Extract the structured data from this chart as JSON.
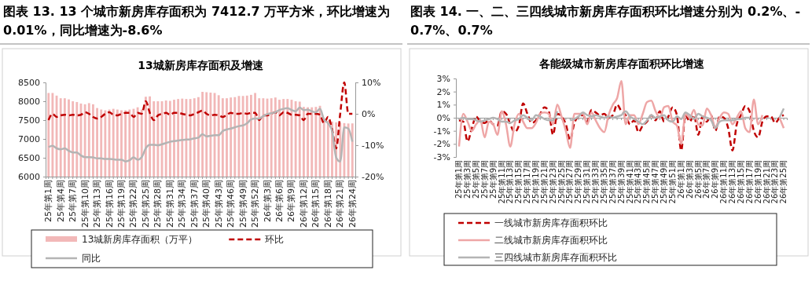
{
  "chart_data": [
    {
      "type": "bar",
      "title": "图表 13. 13 个城市新房库存面积为 7412.7 万平方米，环比增速为 0.01%，同比增速为-8.6%",
      "subtitle": "13城新房库存面积及增速",
      "categories": [
        "25年第1周",
        null,
        null,
        "25年第4周",
        null,
        null,
        "25年第7周",
        null,
        null,
        "25年第10周",
        null,
        null,
        "25年第13周",
        null,
        null,
        "25年第16周",
        null,
        null,
        "25年第19周",
        null,
        null,
        "25年第22周",
        null,
        null,
        "25年第25周",
        null,
        null,
        "25年第28周",
        null,
        null,
        "25年第31周",
        null,
        null,
        "25年第34周",
        null,
        null,
        "25年第37周",
        null,
        null,
        "25年第40周",
        null,
        null,
        "25年第43周",
        null,
        null,
        "25年第46周",
        null,
        null,
        "25年第49周",
        null,
        null,
        "25年第52周",
        null,
        null,
        "26年第3周",
        null,
        null,
        "26年第6周",
        null,
        null,
        "26年第9周",
        null,
        null,
        "26年第12周",
        null,
        null,
        "26年第15周",
        null,
        null,
        "26年第18周",
        null,
        null,
        "26年第21周",
        null,
        null,
        "26年第24周"
      ],
      "ylim": [
        6000,
        8500
      ],
      "yticks": [
        6000,
        6500,
        7000,
        7500,
        8000,
        8500
      ],
      "y2lim": [
        -20,
        10
      ],
      "y2ticks": [
        {
          "value": -20,
          "label": "-20%"
        },
        {
          "value": -10,
          "label": "-10%"
        },
        {
          "value": 0,
          "label": "0%"
        },
        {
          "value": 10,
          "label": "10%"
        }
      ],
      "legend": "bottom",
      "series": [
        {
          "name": "13城新房库存面积（万平）",
          "color": "#f2b8b8",
          "values": [
            8220,
            8220,
            8150,
            8080,
            8080,
            8050,
            8000,
            7980,
            7940,
            7920,
            7950,
            7920,
            7820,
            7780,
            7760,
            7780,
            7800,
            7780,
            7760,
            7760,
            7780,
            7800,
            7840,
            7780,
            8120,
            8130,
            8000,
            8000,
            8000,
            8020,
            8010,
            8040,
            8060,
            8070,
            8060,
            8060,
            8080,
            8110,
            8250,
            8240,
            8230,
            8220,
            8160,
            8080,
            8080,
            8100,
            8110,
            8140,
            8140,
            8150,
            8170,
            8220,
            8080,
            8080,
            8070,
            8080,
            8100,
            8040,
            8060,
            8060,
            8040,
            8000,
            7990,
            7850,
            7840,
            7840,
            7850,
            7880,
            7530,
            7480,
            7460,
            7440,
            7430,
            7420,
            7410,
            7412.7
          ]
        },
        {
          "name": "环比",
          "type": "line",
          "axis": "y2",
          "line_style": "dashed",
          "color": "#c00000",
          "values": [
            -2,
            0,
            -1,
            -0.5,
            -0.3,
            -0.5,
            -0.3,
            -0.5,
            -0.3,
            0.5,
            0,
            -1,
            -1.5,
            -1,
            0,
            0.5,
            -0.3,
            -0.5,
            0,
            0.3,
            0.3,
            -1,
            0.3,
            0,
            4,
            0.3,
            -2,
            -0.5,
            0,
            0.3,
            -0.3,
            0.3,
            0.3,
            0,
            -0.3,
            -0.5,
            0,
            0.5,
            1,
            0,
            -0.5,
            -0.3,
            -0.5,
            -1,
            -0.3,
            0.3,
            0,
            0,
            0.3,
            0,
            0.3,
            0.3,
            -2,
            -0.5,
            -0.5,
            0,
            0.5,
            -0.5,
            0.5,
            0.3,
            -0.3,
            -0.3,
            -0.5,
            -2,
            0,
            0,
            0,
            -0.3,
            -3,
            -1,
            -5,
            -11,
            0,
            10,
            0,
            0
          ]
        },
        {
          "name": "同比",
          "type": "line",
          "axis": "y2",
          "line_style": "solid",
          "color": "#b4b4b4",
          "values": [
            -10.6,
            -10.2,
            -11,
            -11.3,
            -11,
            -11.8,
            -12.3,
            -12.3,
            -13.3,
            -13.8,
            -13.8,
            -13.9,
            -14.2,
            -14.2,
            -14.4,
            -14.4,
            -14.5,
            -14.6,
            -14.6,
            -15.2,
            -14.8,
            -13.9,
            -14.6,
            -13.8,
            -11,
            -9.9,
            -9.9,
            -10,
            -9.7,
            -9.3,
            -8.9,
            -8.7,
            -8.5,
            -8.3,
            -8.2,
            -8.1,
            -7.8,
            -7.6,
            -6.5,
            -7.2,
            -7,
            -6.8,
            -6.8,
            -5.5,
            -5,
            -4.7,
            -4.3,
            -3.9,
            -3.7,
            -3,
            -1.8,
            -1.5,
            -1.5,
            -0.7,
            -0.1,
            0.2,
            0.5,
            1.2,
            1.6,
            1.8,
            1.2,
            0.8,
            2,
            1.2,
            1.3,
            0.8,
            0.5,
            1.6,
            -1.8,
            -3,
            -5.5,
            -13.9,
            -15.2,
            -4.3,
            -4.7,
            -8.9
          ]
        }
      ]
    },
    {
      "type": "line",
      "title": "图表 14. 一、二、三四线城市新房库存面积环比增速分别为 0.2%、-0.7%、0.7%",
      "subtitle": "各能级城市新房库存面积环比增速",
      "categories": [
        "25年第1周",
        null,
        "25年第3周",
        null,
        "25年第5周",
        null,
        "25年第7周",
        null,
        "25年第9周",
        null,
        "25年第11周",
        null,
        "25年第13周",
        null,
        "25年第15周",
        null,
        "25年第17周",
        null,
        "25年第19周",
        null,
        "25年第21周",
        null,
        "25年第23周",
        null,
        "25年第25周",
        null,
        "25年第27周",
        null,
        "25年第29周",
        null,
        "25年第31周",
        null,
        "25年第33周",
        null,
        "25年第35周",
        null,
        "25年第37周",
        null,
        "25年第39周",
        null,
        "25年第41周",
        null,
        "25年第43周",
        null,
        "25年第45周",
        null,
        "25年第47周",
        null,
        "25年第49周",
        null,
        "25年第51周",
        null,
        "26年第1周",
        null,
        "26年第3周",
        null,
        "26年第5周",
        null,
        "26年第7周",
        null,
        "26年第9周",
        null,
        "26年第11周",
        null,
        "26年第13周",
        null,
        "26年第15周",
        null,
        "26年第17周",
        null,
        "26年第19周",
        null,
        "26年第21周",
        null,
        "26年第23周",
        null,
        "26年第25周"
      ],
      "ylim": [
        -3,
        3
      ],
      "yticks": [
        {
          "value": -3,
          "label": "-3%"
        },
        {
          "value": -2,
          "label": "-2%"
        },
        {
          "value": -1,
          "label": "-1%"
        },
        {
          "value": 0,
          "label": "0%"
        },
        {
          "value": 1,
          "label": "1%"
        },
        {
          "value": 2,
          "label": "2%"
        },
        {
          "value": 3,
          "label": "3%"
        }
      ],
      "legend": "bottom",
      "series": [
        {
          "name": "一线城市新房库存面积环比",
          "line_style": "dashed",
          "color": "#c00000",
          "values": [
            -0.2,
            -0.3,
            -1.8,
            -0.8,
            0.1,
            -0.3,
            -0.4,
            -0.2,
            -0.5,
            -0.6,
            0.5,
            0.3,
            -0.5,
            -1.1,
            -0.6,
            1.1,
            0.3,
            -0.4,
            -0.2,
            0.3,
            0.8,
            0.5,
            -1.3,
            0.3,
            0.1,
            -0.5,
            -1.7,
            -0.4,
            0.1,
            0.2,
            -0.3,
            0.6,
            0.4,
            0.2,
            0.3,
            0,
            0.2,
            1.0,
            0.5,
            0.2,
            -0.5,
            -0.2,
            -1.1,
            -0.6,
            -0.3,
            0.2,
            -0.2,
            0.5,
            -0.3,
            0.1,
            0.8,
            0.2,
            -2.5,
            0.2,
            -0.3,
            0.2,
            -1.3,
            0.1,
            -0.3,
            0.2,
            -1,
            0.1,
            0,
            -0.8,
            -2.5,
            -0.5,
            0.2,
            0.9,
            0.5,
            -1,
            -1.5,
            -0.3,
            0.1,
            0.1,
            -0.4,
            0,
            0.2
          ]
        },
        {
          "name": "二线城市新房库存面积环比",
          "line_style": "solid",
          "color": "#eea6a6",
          "values": [
            -2.2,
            0.3,
            -0.3,
            -1.0,
            -0.5,
            -0.2,
            -1.5,
            -0.3,
            -0.5,
            -1.3,
            0.5,
            -0.5,
            -2.2,
            -0.5,
            0.3,
            -0.3,
            -0.8,
            -0.8,
            -0.4,
            0.3,
            0.4,
            0.3,
            -0.5,
            1.0,
            0.1,
            -1,
            -2.3,
            0.3,
            0.3,
            0.3,
            -0.5,
            0.4,
            -0.2,
            -0.8,
            -1.1,
            0.2,
            1.0,
            1.5,
            2.8,
            -0.5,
            0.2,
            0.2,
            -0.5,
            0.3,
            1.2,
            1.3,
            0.5,
            0,
            0.8,
            0.9,
            -0.3,
            -0.6,
            -2.0,
            0.3,
            0,
            0.6,
            -0.5,
            -0.6,
            0.7,
            0.2,
            -0.7,
            0,
            0.4,
            0.3,
            -0.5,
            0,
            0.5,
            -0.8,
            -1.1,
            1.4,
            -0.5,
            0.2,
            null,
            null,
            null,
            0,
            -0.8
          ]
        },
        {
          "name": "三四线城市新房库存面积环比",
          "line_style": "solid",
          "color": "#b4b4b4",
          "values": [
            -0.1,
            0,
            -0.1,
            -0.1,
            -0.2,
            -0.3,
            -0.2,
            -0.1,
            0,
            -0.1,
            -0.3,
            -0.3,
            -0.4,
            -0.2,
            -0.1,
            0.2,
            0,
            -0.2,
            0.2,
            0.1,
            -0.1,
            -0.2,
            -0.2,
            0.5,
            null,
            null,
            -0.2,
            -0.1,
            0.1,
            0.4,
            0.2,
            0.1,
            0.2,
            0.1,
            0,
            0.1,
            0,
            0.1,
            0.2,
            0.5,
            0.1,
            -0.1,
            -0.3,
            -0.5,
            -0.2,
            0.2,
            0,
            0.1,
            0.2,
            -0.2,
            -0.3,
            0.1,
            -0.1,
            0.4,
            0.2,
            -0.1,
            0.3,
            0.1,
            0,
            -0.2,
            -0.8,
            -0.3,
            -0.2,
            -0.2,
            -0.2,
            -0.1,
            -0.1,
            0,
            0,
            null,
            null,
            null,
            null,
            null,
            null,
            0,
            0.7
          ]
        }
      ]
    }
  ]
}
